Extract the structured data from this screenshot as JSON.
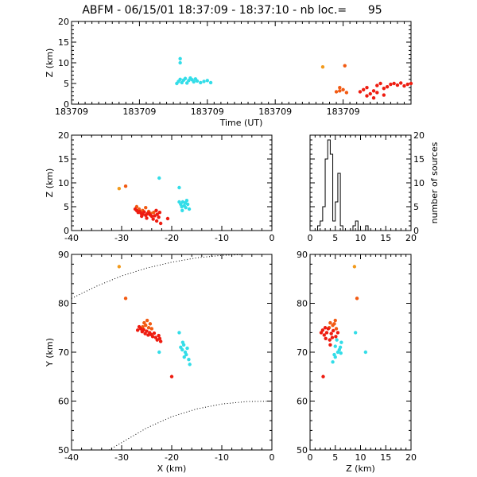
{
  "title": "ABFM - 06/15/01 18:37:09 - 18:37:10 - nb loc.=      95",
  "colors": {
    "cyan": "#33dde8",
    "orange": "#f29a1c",
    "red_orange": "#f25a12",
    "red": "#ee1c10"
  },
  "chart_data": [
    {
      "id": "time_height",
      "type": "scatter",
      "xlabel": "Time (UT)",
      "ylabel": "Z (km)",
      "xlim": [
        0,
        1
      ],
      "ylim": [
        0,
        20
      ],
      "x_tick_labels": [
        "183709",
        "183709",
        "183709",
        "183709",
        "183709"
      ],
      "y_ticks": [
        0,
        5,
        10,
        15,
        20
      ],
      "series": [
        {
          "color": "cyan",
          "points": [
            [
              0.32,
              11
            ],
            [
              0.32,
              10
            ],
            [
              0.31,
              5
            ],
            [
              0.315,
              5.5
            ],
            [
              0.32,
              6
            ],
            [
              0.325,
              5.2
            ],
            [
              0.33,
              5.8
            ],
            [
              0.335,
              6.2
            ],
            [
              0.34,
              5.1
            ],
            [
              0.345,
              5.7
            ],
            [
              0.35,
              6.3
            ],
            [
              0.355,
              5.9
            ],
            [
              0.36,
              5.4
            ],
            [
              0.365,
              6.1
            ],
            [
              0.37,
              5.6
            ],
            [
              0.38,
              5.2
            ],
            [
              0.39,
              5.5
            ],
            [
              0.4,
              5.7
            ],
            [
              0.41,
              5.2
            ]
          ]
        },
        {
          "color": "orange",
          "points": [
            [
              0.74,
              9
            ]
          ]
        },
        {
          "color": "red_orange",
          "points": [
            [
              0.78,
              3
            ],
            [
              0.79,
              4
            ],
            [
              0.8,
              3.5
            ],
            [
              0.81,
              2.8
            ],
            [
              0.805,
              9.3
            ],
            [
              0.79,
              3.2
            ]
          ]
        },
        {
          "color": "red",
          "points": [
            [
              0.85,
              3
            ],
            [
              0.86,
              3.5
            ],
            [
              0.87,
              4
            ],
            [
              0.88,
              2.5
            ],
            [
              0.89,
              3.2
            ],
            [
              0.9,
              4.5
            ],
            [
              0.91,
              5
            ],
            [
              0.92,
              3.8
            ],
            [
              0.93,
              4.2
            ],
            [
              0.94,
              4.8
            ],
            [
              0.95,
              5
            ],
            [
              0.96,
              4.6
            ],
            [
              0.97,
              5.1
            ],
            [
              0.98,
              4.4
            ],
            [
              0.99,
              4.8
            ],
            [
              1.0,
              5
            ],
            [
              0.87,
              2
            ],
            [
              0.89,
              1.5
            ],
            [
              0.9,
              2.8
            ],
            [
              0.92,
              2.2
            ]
          ]
        }
      ]
    },
    {
      "id": "xz",
      "type": "scatter",
      "ylabel": "Z (km)",
      "xlim": [
        -40,
        0
      ],
      "ylim": [
        0,
        20
      ],
      "x_ticks": [
        -40,
        -30,
        -20,
        -10,
        0
      ],
      "y_ticks": [
        0,
        5,
        10,
        15,
        20
      ],
      "series": [
        {
          "color": "cyan",
          "points": [
            [
              -22.5,
              11
            ],
            [
              -18.5,
              9
            ],
            [
              -18.5,
              6
            ],
            [
              -18.2,
              5.5
            ],
            [
              -17.8,
              6
            ],
            [
              -17.5,
              5.2
            ],
            [
              -17.2,
              4.8
            ],
            [
              -17,
              6.3
            ],
            [
              -16.8,
              5.5
            ],
            [
              -16.5,
              4.5
            ],
            [
              -17.9,
              4.2
            ],
            [
              -17.3,
              5.8
            ],
            [
              -18.0,
              5.0
            ]
          ]
        },
        {
          "color": "orange",
          "points": [
            [
              -30.5,
              8.8
            ]
          ]
        },
        {
          "color": "red_orange",
          "points": [
            [
              -29.2,
              9.3
            ],
            [
              -27,
              5
            ],
            [
              -26.5,
              4.5
            ],
            [
              -25.8,
              4.2
            ],
            [
              -25.2,
              4.8
            ],
            [
              -24.6,
              4.0
            ],
            [
              -24.2,
              3.6
            ],
            [
              -23.6,
              3.8
            ]
          ]
        },
        {
          "color": "red",
          "points": [
            [
              -27.3,
              4.5
            ],
            [
              -27.0,
              4.2
            ],
            [
              -26.7,
              3.8
            ],
            [
              -26.4,
              4.0
            ],
            [
              -26.1,
              3.6
            ],
            [
              -25.8,
              3.4
            ],
            [
              -25.5,
              3.9
            ],
            [
              -25.2,
              3.2
            ],
            [
              -24.9,
              3.5
            ],
            [
              -24.6,
              3.7
            ],
            [
              -24.3,
              3.3
            ],
            [
              -24.0,
              3.0
            ],
            [
              -23.7,
              2.4
            ],
            [
              -23.4,
              3.1
            ],
            [
              -23.1,
              4.2
            ],
            [
              -22.9,
              3.4
            ],
            [
              -22.6,
              2.8
            ],
            [
              -22.4,
              3.8
            ],
            [
              -22.2,
              1.5
            ],
            [
              -20.8,
              2.5
            ],
            [
              -26.0,
              3.0
            ],
            [
              -25.0,
              2.6
            ],
            [
              -23.0,
              2.0
            ]
          ]
        }
      ]
    },
    {
      "id": "histogram",
      "type": "bar",
      "ylabel": "number of sources",
      "xlim": [
        0,
        20
      ],
      "ylim": [
        0,
        20
      ],
      "x_ticks": [
        0,
        5,
        10,
        15,
        20
      ],
      "y_ticks": [
        0,
        5,
        10,
        15,
        20
      ],
      "bin_edges": [
        0,
        0.5,
        1,
        1.5,
        2,
        2.5,
        3,
        3.5,
        4,
        4.5,
        5,
        5.5,
        6,
        6.5,
        7,
        7.5,
        8,
        8.5,
        9,
        9.5,
        10,
        10.5,
        11,
        11.5,
        12
      ],
      "counts": [
        0,
        0,
        0,
        1,
        2,
        5,
        15,
        19,
        16,
        2,
        6,
        12,
        1,
        0,
        0,
        0,
        0,
        1,
        2,
        0,
        0,
        0,
        1,
        0
      ]
    },
    {
      "id": "xy",
      "type": "scatter",
      "xlabel": "X (km)",
      "ylabel": "Y (km)",
      "xlim": [
        -40,
        0
      ],
      "ylim": [
        50,
        90
      ],
      "x_ticks": [
        -40,
        -30,
        -20,
        -10,
        0
      ],
      "y_ticks": [
        50,
        60,
        70,
        80,
        90
      ],
      "range_circles": [
        {
          "points": [
            [
              -40,
              81
            ],
            [
              -35,
              83.5
            ],
            [
              -30,
              85.6
            ],
            [
              -25,
              87.2
            ],
            [
              -20,
              88.4
            ],
            [
              -15,
              89.3
            ],
            [
              -10,
              89.8
            ],
            [
              -5,
              90
            ],
            [
              0,
              90
            ]
          ]
        },
        {
          "points": [
            [
              -32.5,
              50
            ],
            [
              -30,
              51.5
            ],
            [
              -25,
              54.5
            ],
            [
              -20,
              56.8
            ],
            [
              -15,
              58.4
            ],
            [
              -10,
              59.4
            ],
            [
              -5,
              59.9
            ],
            [
              0,
              60
            ]
          ]
        }
      ],
      "series": [
        {
          "color": "cyan",
          "points": [
            [
              -22.5,
              70
            ],
            [
              -18.5,
              74
            ],
            [
              -18.2,
              71
            ],
            [
              -17.9,
              70.5
            ],
            [
              -17.6,
              71.5
            ],
            [
              -17.3,
              70
            ],
            [
              -17.1,
              69.5
            ],
            [
              -16.9,
              70.8
            ],
            [
              -16.6,
              68.5
            ],
            [
              -16.4,
              67.5
            ],
            [
              -17.8,
              72
            ],
            [
              -17.5,
              69
            ]
          ]
        },
        {
          "color": "orange",
          "points": [
            [
              -30.5,
              87.5
            ]
          ]
        },
        {
          "color": "red_orange",
          "points": [
            [
              -29.2,
              81
            ],
            [
              -25.5,
              76
            ],
            [
              -25.2,
              75.5
            ],
            [
              -24.9,
              76.5
            ],
            [
              -24.6,
              75
            ],
            [
              -24.3,
              75.8
            ],
            [
              -24.0,
              74.8
            ],
            [
              -25.8,
              75.2
            ]
          ]
        },
        {
          "color": "red",
          "points": [
            [
              -26.8,
              74.5
            ],
            [
              -26.5,
              75.2
            ],
            [
              -26.2,
              74.8
            ],
            [
              -25.9,
              74.2
            ],
            [
              -25.6,
              74.6
            ],
            [
              -25.3,
              73.8
            ],
            [
              -25.0,
              74.3
            ],
            [
              -24.7,
              73.5
            ],
            [
              -24.4,
              74
            ],
            [
              -24.1,
              73.6
            ],
            [
              -23.8,
              73.2
            ],
            [
              -23.5,
              73.9
            ],
            [
              -23.2,
              73
            ],
            [
              -22.9,
              72.5
            ],
            [
              -22.6,
              73.4
            ],
            [
              -22.4,
              72.8
            ],
            [
              -22.2,
              72.2
            ],
            [
              -20.0,
              65
            ]
          ]
        }
      ]
    },
    {
      "id": "zy",
      "type": "scatter",
      "xlabel": "Z (km)",
      "xlim": [
        0,
        20
      ],
      "ylim": [
        50,
        90
      ],
      "x_ticks": [
        0,
        5,
        10,
        15,
        20
      ],
      "y_ticks": [
        50,
        60,
        70,
        80,
        90
      ],
      "series": [
        {
          "color": "cyan",
          "points": [
            [
              11,
              70
            ],
            [
              9,
              74
            ],
            [
              4.5,
              68
            ],
            [
              5,
              69
            ],
            [
              5.5,
              70
            ],
            [
              6,
              71
            ],
            [
              6.2,
              72
            ],
            [
              5.8,
              70.5
            ],
            [
              4.8,
              69.5
            ],
            [
              5.3,
              72.5
            ],
            [
              6.1,
              69.8
            ],
            [
              5.0,
              71.2
            ]
          ]
        },
        {
          "color": "orange",
          "points": [
            [
              8.8,
              87.5
            ]
          ]
        },
        {
          "color": "red_orange",
          "points": [
            [
              9.3,
              81
            ],
            [
              4,
              76
            ],
            [
              4.5,
              75.5
            ],
            [
              5,
              76.5
            ],
            [
              3.8,
              75
            ],
            [
              4.8,
              75.8
            ],
            [
              5.2,
              74.8
            ]
          ]
        },
        {
          "color": "red",
          "points": [
            [
              2.5,
              74.5
            ],
            [
              3,
              75
            ],
            [
              3.3,
              74
            ],
            [
              2.8,
              73.5
            ],
            [
              3.6,
              74.8
            ],
            [
              4.2,
              73.8
            ],
            [
              4.6,
              74.4
            ],
            [
              5.1,
              73.2
            ],
            [
              5.5,
              74
            ],
            [
              3.1,
              72.8
            ],
            [
              3.9,
              72.5
            ],
            [
              4.4,
              73
            ],
            [
              2.2,
              74
            ],
            [
              4.0,
              71.5
            ],
            [
              2.6,
              65
            ]
          ]
        }
      ]
    }
  ]
}
